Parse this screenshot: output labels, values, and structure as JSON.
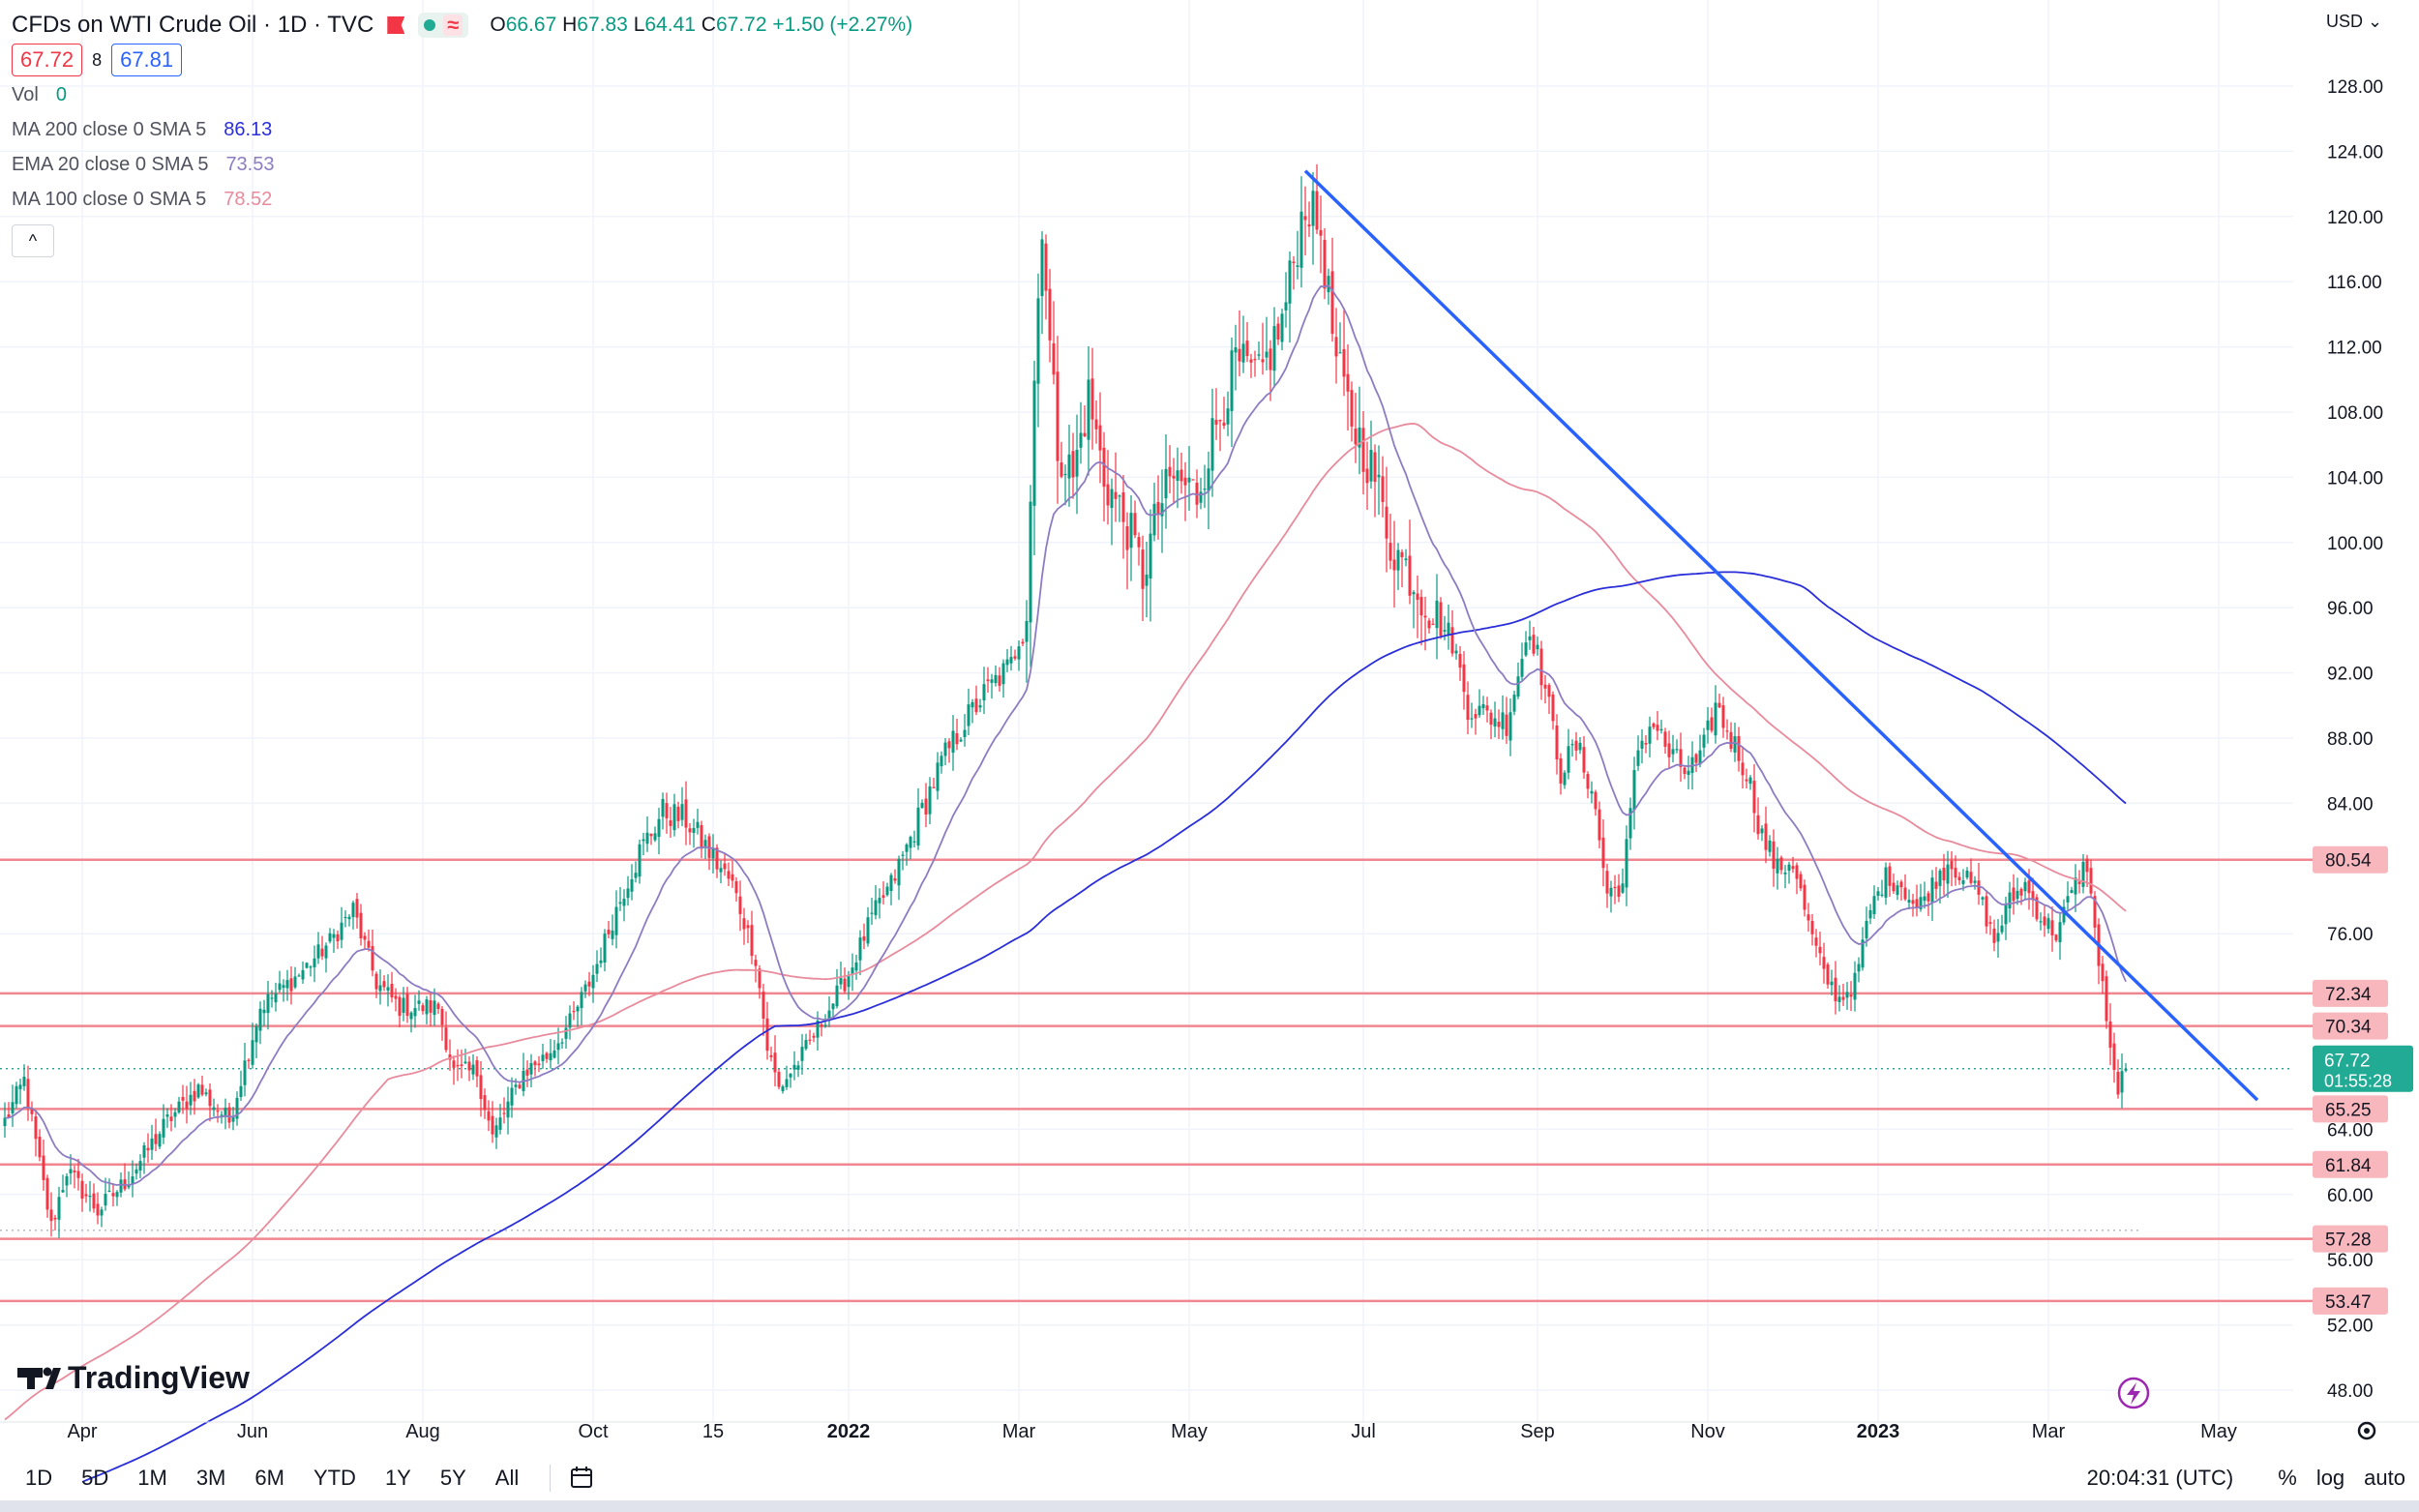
{
  "header": {
    "title": "CFDs on WTI Crude Oil · 1D · TVC",
    "status_icon": "market-open-dot",
    "wave_icon": "≈",
    "ohlc": {
      "o_label": "O",
      "o": "66.67",
      "h_label": "H",
      "h": "67.83",
      "l_label": "L",
      "l": "64.41",
      "c_label": "C",
      "c": "67.72",
      "change": "+1.50 (+2.27%)"
    },
    "bid": "67.72",
    "spread": "8",
    "ask": "67.81",
    "currency": "USD",
    "collapse_icon": "^"
  },
  "indicators": [
    {
      "label": "Vol",
      "value": "0",
      "color": "#089981"
    },
    {
      "label": "MA 200 close 0 SMA 5",
      "value": "86.13",
      "color": "#2a2ed8"
    },
    {
      "label": "EMA 20 close 0 SMA 5",
      "value": "73.53",
      "color": "#8e7cc3"
    },
    {
      "label": "MA 100 close 0 SMA 5",
      "value": "78.52",
      "color": "#e88b9c"
    }
  ],
  "watermark": "TradingView",
  "bottom_bar": {
    "timeframes": [
      "1D",
      "5D",
      "1M",
      "3M",
      "6M",
      "YTD",
      "1Y",
      "5Y",
      "All"
    ],
    "time": "20:04:31 (UTC)",
    "percent": "%",
    "log": "log",
    "auto": "auto"
  },
  "chart_data": {
    "type": "candlestick",
    "title": "CFDs on WTI Crude Oil · 1D · TVC",
    "currency": "USD",
    "ylim": [
      46,
      130
    ],
    "y_ticks": [
      48,
      52,
      56,
      60,
      64,
      76,
      84,
      88,
      92,
      96,
      100,
      104,
      108,
      112,
      116,
      120,
      124,
      128
    ],
    "y_tick_labels": [
      "48.00",
      "52.00",
      "56.00",
      "60.00",
      "64.00",
      "76.00",
      "84.00",
      "88.00",
      "92.00",
      "96.00",
      "100.00",
      "104.00",
      "108.00",
      "112.00",
      "116.00",
      "120.00",
      "124.00",
      "128.00"
    ],
    "x_labels": [
      {
        "text": "Apr",
        "i": 20,
        "bold": false
      },
      {
        "text": "Jun",
        "i": 64,
        "bold": false
      },
      {
        "text": "Aug",
        "i": 108,
        "bold": false
      },
      {
        "text": "Oct",
        "i": 152,
        "bold": false
      },
      {
        "text": "15",
        "i": 183,
        "bold": false
      },
      {
        "text": "2022",
        "i": 218,
        "bold": true
      },
      {
        "text": "Mar",
        "i": 262,
        "bold": false
      },
      {
        "text": "May",
        "i": 306,
        "bold": false
      },
      {
        "text": "Jul",
        "i": 351,
        "bold": false
      },
      {
        "text": "Sep",
        "i": 396,
        "bold": false
      },
      {
        "text": "Nov",
        "i": 440,
        "bold": false
      },
      {
        "text": "2023",
        "i": 484,
        "bold": true
      },
      {
        "text": "Mar",
        "i": 528,
        "bold": false
      },
      {
        "text": "May",
        "i": 572,
        "bold": false
      }
    ],
    "horizontal_levels": [
      80.54,
      72.34,
      70.34,
      65.25,
      61.84,
      57.28,
      53.47
    ],
    "last_price": {
      "value": 67.72,
      "label": "67.72",
      "countdown": "01:55:28"
    },
    "trendline": {
      "from": {
        "i": 336,
        "value": 122.8
      },
      "to": {
        "i": 582,
        "value": 65.8
      }
    },
    "anchors": [
      [
        0,
        64.5
      ],
      [
        5,
        67.0
      ],
      [
        12,
        58.0
      ],
      [
        16,
        61.5
      ],
      [
        24,
        59.0
      ],
      [
        32,
        61.0
      ],
      [
        42,
        64.5
      ],
      [
        50,
        66.5
      ],
      [
        58,
        64.5
      ],
      [
        66,
        71.5
      ],
      [
        76,
        73.5
      ],
      [
        84,
        75.5
      ],
      [
        90,
        77.5
      ],
      [
        96,
        73.0
      ],
      [
        102,
        71.5
      ],
      [
        112,
        71.5
      ],
      [
        116,
        67.5
      ],
      [
        122,
        67.5
      ],
      [
        126,
        63.5
      ],
      [
        134,
        67.5
      ],
      [
        140,
        68.5
      ],
      [
        146,
        70.5
      ],
      [
        152,
        73.5
      ],
      [
        158,
        77.5
      ],
      [
        164,
        81.0
      ],
      [
        170,
        83.5
      ],
      [
        176,
        83.0
      ],
      [
        182,
        81.0
      ],
      [
        188,
        79.0
      ],
      [
        194,
        74.5
      ],
      [
        197,
        69.0
      ],
      [
        200,
        66.5
      ],
      [
        206,
        68.5
      ],
      [
        212,
        71.0
      ],
      [
        218,
        73.5
      ],
      [
        224,
        77.0
      ],
      [
        230,
        79.5
      ],
      [
        236,
        83.0
      ],
      [
        242,
        86.5
      ],
      [
        248,
        89.0
      ],
      [
        254,
        91.0
      ],
      [
        260,
        92.5
      ],
      [
        264,
        96.0
      ],
      [
        266,
        110.0
      ],
      [
        268,
        120.0
      ],
      [
        270,
        112.0
      ],
      [
        272,
        106.0
      ],
      [
        276,
        104.0
      ],
      [
        280,
        109.0
      ],
      [
        284,
        104.0
      ],
      [
        290,
        101.0
      ],
      [
        294,
        98.0
      ],
      [
        298,
        102.0
      ],
      [
        302,
        104.0
      ],
      [
        308,
        103.0
      ],
      [
        312,
        106.5
      ],
      [
        318,
        111.0
      ],
      [
        324,
        110.0
      ],
      [
        330,
        113.5
      ],
      [
        336,
        121.0
      ],
      [
        340,
        119.0
      ],
      [
        344,
        111.0
      ],
      [
        348,
        107.5
      ],
      [
        354,
        104.0
      ],
      [
        358,
        100.0
      ],
      [
        362,
        98.5
      ],
      [
        368,
        96.0
      ],
      [
        374,
        94.0
      ],
      [
        378,
        90.0
      ],
      [
        382,
        89.5
      ],
      [
        388,
        89.0
      ],
      [
        394,
        95.0
      ],
      [
        398,
        91.0
      ],
      [
        402,
        86.0
      ],
      [
        406,
        87.5
      ],
      [
        410,
        85.0
      ],
      [
        414,
        78.5
      ],
      [
        418,
        79.0
      ],
      [
        422,
        87.5
      ],
      [
        426,
        89.0
      ],
      [
        430,
        87.0
      ],
      [
        434,
        86.0
      ],
      [
        438,
        86.5
      ],
      [
        442,
        90.0
      ],
      [
        446,
        88.0
      ],
      [
        450,
        86.0
      ],
      [
        454,
        82.0
      ],
      [
        458,
        80.0
      ],
      [
        462,
        80.5
      ],
      [
        466,
        76.5
      ],
      [
        470,
        73.5
      ],
      [
        474,
        72.0
      ],
      [
        478,
        73.0
      ],
      [
        482,
        77.5
      ],
      [
        486,
        79.5
      ],
      [
        490,
        79.0
      ],
      [
        494,
        77.5
      ],
      [
        498,
        79.0
      ],
      [
        502,
        80.5
      ],
      [
        506,
        79.5
      ],
      [
        510,
        78.5
      ],
      [
        514,
        75.5
      ],
      [
        518,
        78.0
      ],
      [
        522,
        79.0
      ],
      [
        526,
        77.0
      ],
      [
        530,
        76.0
      ],
      [
        534,
        78.5
      ],
      [
        538,
        80.5
      ],
      [
        540,
        76.0
      ],
      [
        542,
        73.0
      ],
      [
        544,
        68.5
      ],
      [
        546,
        66.5
      ],
      [
        548,
        67.7
      ]
    ],
    "series": [
      {
        "name": "WTI Crude Oil 1D candles",
        "type": "candlestick",
        "color_up": "#089981",
        "color_down": "#f23645"
      },
      {
        "name": "MA 200 close 0 SMA 5",
        "type": "line",
        "color": "#2a2ed8",
        "start_i": 20,
        "length": 200
      },
      {
        "name": "EMA 20 close 0 SMA 5",
        "type": "line",
        "color": "#8e7cc3",
        "start_i": 0,
        "length": 20
      },
      {
        "name": "MA 100 close 0 SMA 5",
        "type": "line",
        "color": "#e88b9c",
        "start_i": 0,
        "length": 100
      }
    ]
  }
}
